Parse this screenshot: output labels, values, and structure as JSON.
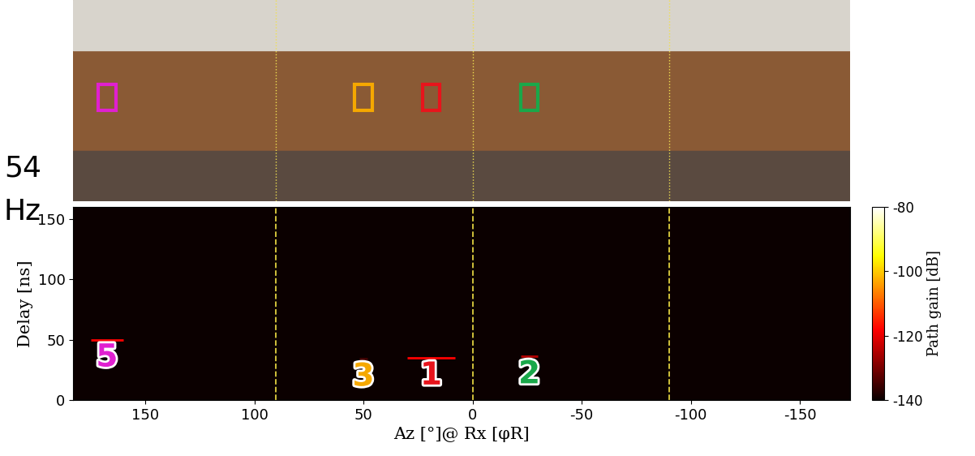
{
  "chart_data": {
    "type": "heatmap",
    "xlabel": "Az [°]@ Rx [φR]",
    "ylabel": "Delay [ns]",
    "xlim": [
      183,
      -173
    ],
    "xticks": [
      150,
      100,
      50,
      0,
      -50,
      -100,
      -150
    ],
    "ylim": [
      0,
      160
    ],
    "yticks": [
      0,
      50,
      100,
      150
    ],
    "reference_lines": [
      90,
      0,
      -90
    ],
    "colorbar": {
      "label": "Path gain [dB]",
      "range": [
        -140,
        -80
      ],
      "ticks": [
        -80,
        -100,
        -120,
        -140
      ]
    },
    "paths": [
      {
        "label": "1",
        "color": "#e8141c",
        "az": [
          30,
          8
        ],
        "delay": 35,
        "gain": -118
      },
      {
        "label": "2",
        "color": "#1aa84a",
        "az": [
          -22,
          -30
        ],
        "delay": 36,
        "gain": -125
      },
      {
        "label": "3",
        "color": "#f5a800",
        "az": [
          52,
          48
        ],
        "delay": 34,
        "gain": -135
      },
      {
        "label": "5",
        "color": "#e020d0",
        "az": [
          175,
          160
        ],
        "delay": 50,
        "gain": -118
      }
    ],
    "annotations": [
      "54",
      "Hz"
    ]
  }
}
